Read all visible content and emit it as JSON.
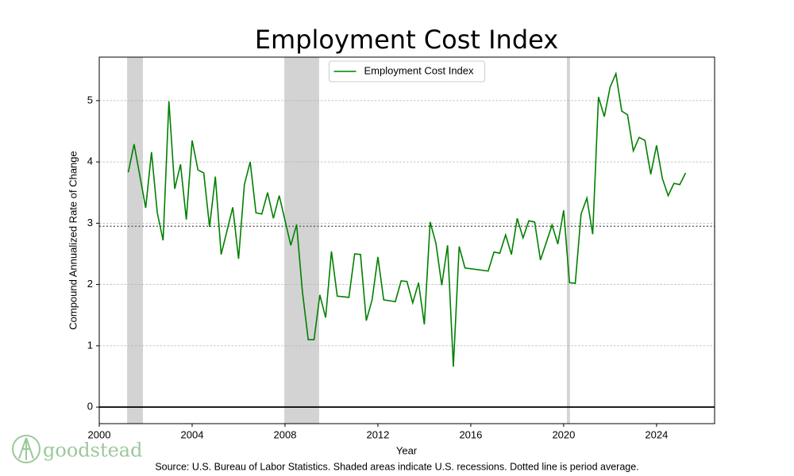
{
  "chart_data": {
    "type": "line",
    "title": "Employment Cost Index",
    "x_label": "Year",
    "y_label": "Compound Annualized Rate of Change",
    "source": "Source: U.S. Bureau of Labor Statistics. Shaded areas indicate U.S. recessions. Dotted line is period average.",
    "brand": "goodstead",
    "xlim": [
      2000,
      2026.5
    ],
    "ylim": [
      -0.27,
      5.71
    ],
    "xticks": [
      2000,
      2004,
      2008,
      2012,
      2016,
      2020,
      2024
    ],
    "yticks": [
      0,
      1,
      2,
      3,
      4,
      5
    ],
    "grid": true,
    "legend": "top-center",
    "average": 2.95,
    "average_color": "#666666",
    "recessions": [
      [
        2001.2,
        2001.88
      ],
      [
        2007.97,
        2009.47
      ],
      [
        2020.14,
        2020.27
      ]
    ],
    "recession_color": "#d3d3d3",
    "x": [
      2001.25,
      2001.5,
      2002.0,
      2002.25,
      2002.5,
      2002.75,
      2003.0,
      2003.25,
      2003.5,
      2003.75,
      2004.0,
      2004.25,
      2004.5,
      2004.75,
      2005.0,
      2005.25,
      2005.75,
      2006.0,
      2006.25,
      2006.5,
      2006.75,
      2007.0,
      2007.25,
      2007.5,
      2007.75,
      2008.25,
      2008.5,
      2008.75,
      2009.0,
      2009.25,
      2009.5,
      2009.75,
      2010.0,
      2010.25,
      2010.75,
      2011.0,
      2011.25,
      2011.5,
      2011.75,
      2012.0,
      2012.25,
      2012.75,
      2013.0,
      2013.25,
      2013.5,
      2013.75,
      2014.0,
      2014.25,
      2014.5,
      2014.75,
      2015.0,
      2015.25,
      2015.5,
      2015.75,
      2016.75,
      2017.0,
      2017.25,
      2017.5,
      2017.75,
      2018.0,
      2018.25,
      2018.5,
      2018.75,
      2019.0,
      2019.5,
      2019.75,
      2020.0,
      2020.25,
      2020.5,
      2020.75,
      2021.0,
      2021.25,
      2021.5,
      2021.75,
      2022.0,
      2022.25,
      2022.5,
      2022.75,
      2023.0,
      2023.25,
      2023.5,
      2023.75,
      2024.0,
      2024.25,
      2024.5,
      2024.75,
      2025.0,
      2025.25
    ],
    "series": [
      {
        "name": "Employment Cost Index",
        "color": "#008000",
        "values": [
          3.83,
          4.29,
          3.25,
          4.16,
          3.17,
          2.72,
          4.99,
          3.56,
          3.96,
          3.06,
          4.35,
          3.87,
          3.82,
          2.94,
          3.76,
          2.49,
          3.26,
          2.42,
          3.63,
          4.0,
          3.17,
          3.15,
          3.5,
          3.08,
          3.45,
          2.64,
          2.98,
          1.88,
          1.1,
          1.1,
          1.83,
          1.46,
          2.54,
          1.81,
          1.79,
          2.5,
          2.49,
          1.41,
          1.75,
          2.45,
          1.75,
          1.72,
          2.06,
          2.05,
          1.7,
          2.03,
          1.35,
          3.02,
          2.67,
          1.99,
          2.64,
          0.66,
          2.62,
          2.27,
          2.22,
          2.53,
          2.51,
          2.81,
          2.49,
          3.08,
          2.76,
          3.04,
          3.02,
          2.4,
          2.97,
          2.66,
          3.21,
          2.03,
          2.02,
          3.15,
          3.41,
          2.82,
          5.06,
          4.74,
          5.22,
          5.44,
          4.83,
          4.77,
          4.18,
          4.4,
          4.35,
          3.8,
          4.27,
          3.73,
          3.45,
          3.65,
          3.63,
          3.82
        ]
      }
    ]
  }
}
